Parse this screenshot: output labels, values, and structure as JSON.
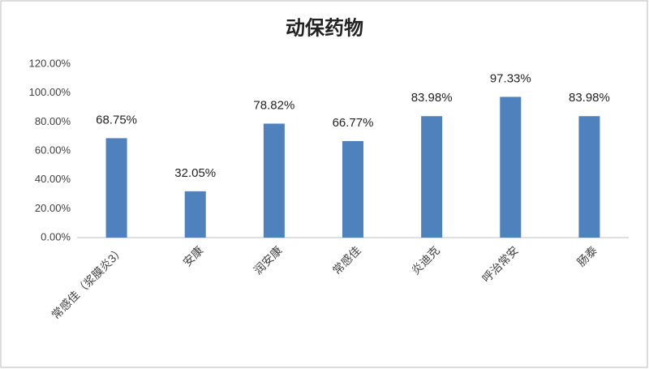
{
  "chart_data": {
    "type": "bar",
    "title": "动保药物",
    "categories": [
      "常感佳（浆膜炎3）",
      "安康",
      "润安康",
      "常感佳",
      "炎迪克",
      "呼治常安",
      "肠泰"
    ],
    "values": [
      68.75,
      32.05,
      78.82,
      66.77,
      83.98,
      97.33,
      83.98
    ],
    "value_labels": [
      "68.75%",
      "32.05%",
      "78.82%",
      "66.77%",
      "83.98%",
      "97.33%",
      "83.98%"
    ],
    "color": "#4f81bd",
    "ylim": [
      0,
      120
    ],
    "yticks": [
      {
        "value": 0,
        "label": "0.00%"
      },
      {
        "value": 20,
        "label": "20.00%"
      },
      {
        "value": 40,
        "label": "40.00%"
      },
      {
        "value": 60,
        "label": "60.00%"
      },
      {
        "value": 80,
        "label": "80.00%"
      },
      {
        "value": 100,
        "label": "100.00%"
      },
      {
        "value": 120,
        "label": "120.00%"
      }
    ],
    "grid": false
  }
}
